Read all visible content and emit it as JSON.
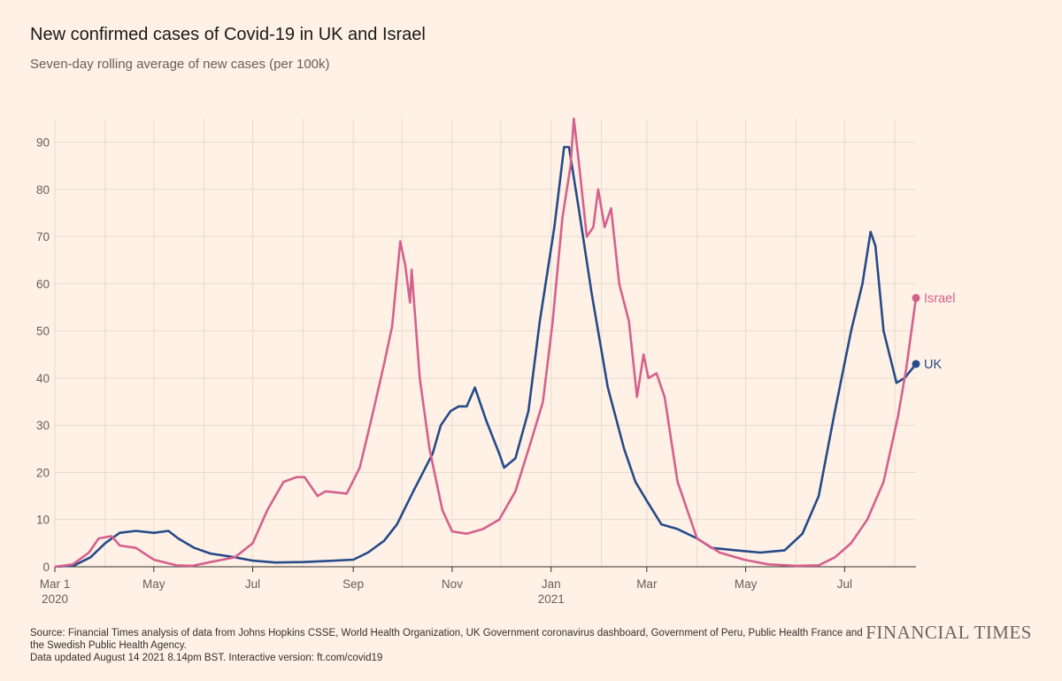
{
  "header": {
    "title": "New confirmed cases of Covid-19 in UK and Israel",
    "subtitle": "Seven-day rolling average of new cases (per 100k)"
  },
  "footer": {
    "source": "Source: Financial Times analysis of data from Johns Hopkins CSSE, World Health Organization, UK Government coronavirus dashboard, Government of Peru, Public Health France and the Swedish Public Health Agency.",
    "updated": "Data updated August 14 2021 8.14pm BST. Interactive version: ft.com/covid19",
    "brand": "FINANCIAL TIMES"
  },
  "colors": {
    "background": "#fff1e5",
    "uk": "#264a8a",
    "israel": "#d4618d",
    "grid": "#e6dbd0",
    "baseline": "#33302e"
  },
  "chart_data": {
    "type": "line",
    "title": "New confirmed cases of Covid-19 in UK and Israel",
    "subtitle": "Seven-day rolling average of new cases (per 100k)",
    "xlabel": "",
    "ylabel": "",
    "x_range": [
      "2020-03-01",
      "2021-08-14"
    ],
    "ylim": [
      0,
      95
    ],
    "y_ticks": [
      0,
      10,
      20,
      30,
      40,
      50,
      60,
      70,
      80,
      90
    ],
    "x_ticks": [
      {
        "date": "2020-03-01",
        "label": "Mar 1",
        "year": "2020"
      },
      {
        "date": "2020-05-01",
        "label": "May",
        "year": ""
      },
      {
        "date": "2020-07-01",
        "label": "Jul",
        "year": ""
      },
      {
        "date": "2020-09-01",
        "label": "Sep",
        "year": ""
      },
      {
        "date": "2020-11-01",
        "label": "Nov",
        "year": ""
      },
      {
        "date": "2021-01-01",
        "label": "Jan",
        "year": "2021"
      },
      {
        "date": "2021-03-01",
        "label": "Mar",
        "year": ""
      },
      {
        "date": "2021-05-01",
        "label": "May",
        "year": ""
      },
      {
        "date": "2021-07-01",
        "label": "Jul",
        "year": ""
      }
    ],
    "grid": true,
    "legend": "direct labels at line ends",
    "series": [
      {
        "name": "UK",
        "color": "#264a8a",
        "points": [
          [
            "2020-03-01",
            0
          ],
          [
            "2020-03-13",
            0.3
          ],
          [
            "2020-03-23",
            2
          ],
          [
            "2020-04-01",
            5
          ],
          [
            "2020-04-10",
            7.2
          ],
          [
            "2020-04-20",
            7.6
          ],
          [
            "2020-05-01",
            7.2
          ],
          [
            "2020-05-10",
            7.6
          ],
          [
            "2020-05-16",
            6
          ],
          [
            "2020-05-26",
            4
          ],
          [
            "2020-06-05",
            2.8
          ],
          [
            "2020-06-20",
            2
          ],
          [
            "2020-07-01",
            1.3
          ],
          [
            "2020-07-15",
            0.9
          ],
          [
            "2020-08-01",
            1
          ],
          [
            "2020-08-15",
            1.2
          ],
          [
            "2020-09-01",
            1.5
          ],
          [
            "2020-09-10",
            3
          ],
          [
            "2020-09-20",
            5.5
          ],
          [
            "2020-09-28",
            9
          ],
          [
            "2020-10-08",
            16
          ],
          [
            "2020-10-20",
            24
          ],
          [
            "2020-10-25",
            30
          ],
          [
            "2020-10-31",
            33
          ],
          [
            "2020-11-05",
            34
          ],
          [
            "2020-11-10",
            34
          ],
          [
            "2020-11-15",
            38
          ],
          [
            "2020-11-22",
            31
          ],
          [
            "2020-11-30",
            24
          ],
          [
            "2020-12-03",
            21
          ],
          [
            "2020-12-10",
            23
          ],
          [
            "2020-12-18",
            33
          ],
          [
            "2020-12-25",
            52
          ],
          [
            "2021-01-03",
            72
          ],
          [
            "2021-01-09",
            89
          ],
          [
            "2021-01-12",
            89
          ],
          [
            "2021-01-18",
            76
          ],
          [
            "2021-01-26",
            58
          ],
          [
            "2021-02-05",
            38
          ],
          [
            "2021-02-15",
            25
          ],
          [
            "2021-02-22",
            18
          ],
          [
            "2021-03-01",
            14
          ],
          [
            "2021-03-10",
            9
          ],
          [
            "2021-03-20",
            8
          ],
          [
            "2021-04-01",
            6
          ],
          [
            "2021-04-10",
            4
          ],
          [
            "2021-04-25",
            3.5
          ],
          [
            "2021-05-10",
            3
          ],
          [
            "2021-05-25",
            3.5
          ],
          [
            "2021-06-05",
            7
          ],
          [
            "2021-06-15",
            15
          ],
          [
            "2021-06-25",
            33
          ],
          [
            "2021-07-05",
            50
          ],
          [
            "2021-07-12",
            60
          ],
          [
            "2021-07-17",
            71
          ],
          [
            "2021-07-20",
            68
          ],
          [
            "2021-07-25",
            50
          ],
          [
            "2021-08-02",
            39
          ],
          [
            "2021-08-07",
            40
          ],
          [
            "2021-08-14",
            43
          ]
        ]
      },
      {
        "name": "Israel",
        "color": "#d4618d",
        "points": [
          [
            "2020-03-01",
            0
          ],
          [
            "2020-03-12",
            0.5
          ],
          [
            "2020-03-22",
            3
          ],
          [
            "2020-03-28",
            6
          ],
          [
            "2020-04-05",
            6.5
          ],
          [
            "2020-04-10",
            4.5
          ],
          [
            "2020-04-20",
            4
          ],
          [
            "2020-05-01",
            1.5
          ],
          [
            "2020-05-15",
            0.3
          ],
          [
            "2020-05-25",
            0.2
          ],
          [
            "2020-06-05",
            1
          ],
          [
            "2020-06-20",
            2
          ],
          [
            "2020-07-01",
            5
          ],
          [
            "2020-07-10",
            12
          ],
          [
            "2020-07-20",
            18
          ],
          [
            "2020-07-28",
            19
          ],
          [
            "2020-08-02",
            19
          ],
          [
            "2020-08-10",
            15
          ],
          [
            "2020-08-15",
            16
          ],
          [
            "2020-08-28",
            15.5
          ],
          [
            "2020-09-05",
            21
          ],
          [
            "2020-09-12",
            31
          ],
          [
            "2020-09-20",
            43
          ],
          [
            "2020-09-25",
            51
          ],
          [
            "2020-09-30",
            69
          ],
          [
            "2020-10-03",
            64
          ],
          [
            "2020-10-06",
            56
          ],
          [
            "2020-10-07",
            63
          ],
          [
            "2020-10-12",
            40
          ],
          [
            "2020-10-18",
            25
          ],
          [
            "2020-10-26",
            12
          ],
          [
            "2020-11-01",
            7.5
          ],
          [
            "2020-11-10",
            7
          ],
          [
            "2020-11-20",
            8
          ],
          [
            "2020-11-30",
            10
          ],
          [
            "2020-12-10",
            16
          ],
          [
            "2020-12-20",
            27
          ],
          [
            "2020-12-27",
            35
          ],
          [
            "2021-01-02",
            52
          ],
          [
            "2021-01-08",
            74
          ],
          [
            "2021-01-13",
            85
          ],
          [
            "2021-01-15",
            95
          ],
          [
            "2021-01-18",
            86
          ],
          [
            "2021-01-23",
            70
          ],
          [
            "2021-01-27",
            72
          ],
          [
            "2021-01-30",
            80
          ],
          [
            "2021-02-03",
            72
          ],
          [
            "2021-02-07",
            76
          ],
          [
            "2021-02-12",
            60
          ],
          [
            "2021-02-18",
            52
          ],
          [
            "2021-02-23",
            36
          ],
          [
            "2021-02-27",
            45
          ],
          [
            "2021-03-02",
            40
          ],
          [
            "2021-03-07",
            41
          ],
          [
            "2021-03-12",
            36
          ],
          [
            "2021-03-20",
            18
          ],
          [
            "2021-04-01",
            6
          ],
          [
            "2021-04-15",
            3
          ],
          [
            "2021-04-30",
            1.5
          ],
          [
            "2021-05-15",
            0.5
          ],
          [
            "2021-06-01",
            0.2
          ],
          [
            "2021-06-15",
            0.3
          ],
          [
            "2021-06-25",
            2
          ],
          [
            "2021-07-05",
            5
          ],
          [
            "2021-07-15",
            10
          ],
          [
            "2021-07-25",
            18
          ],
          [
            "2021-08-03",
            32
          ],
          [
            "2021-08-08",
            42
          ],
          [
            "2021-08-14",
            57
          ]
        ]
      }
    ]
  }
}
